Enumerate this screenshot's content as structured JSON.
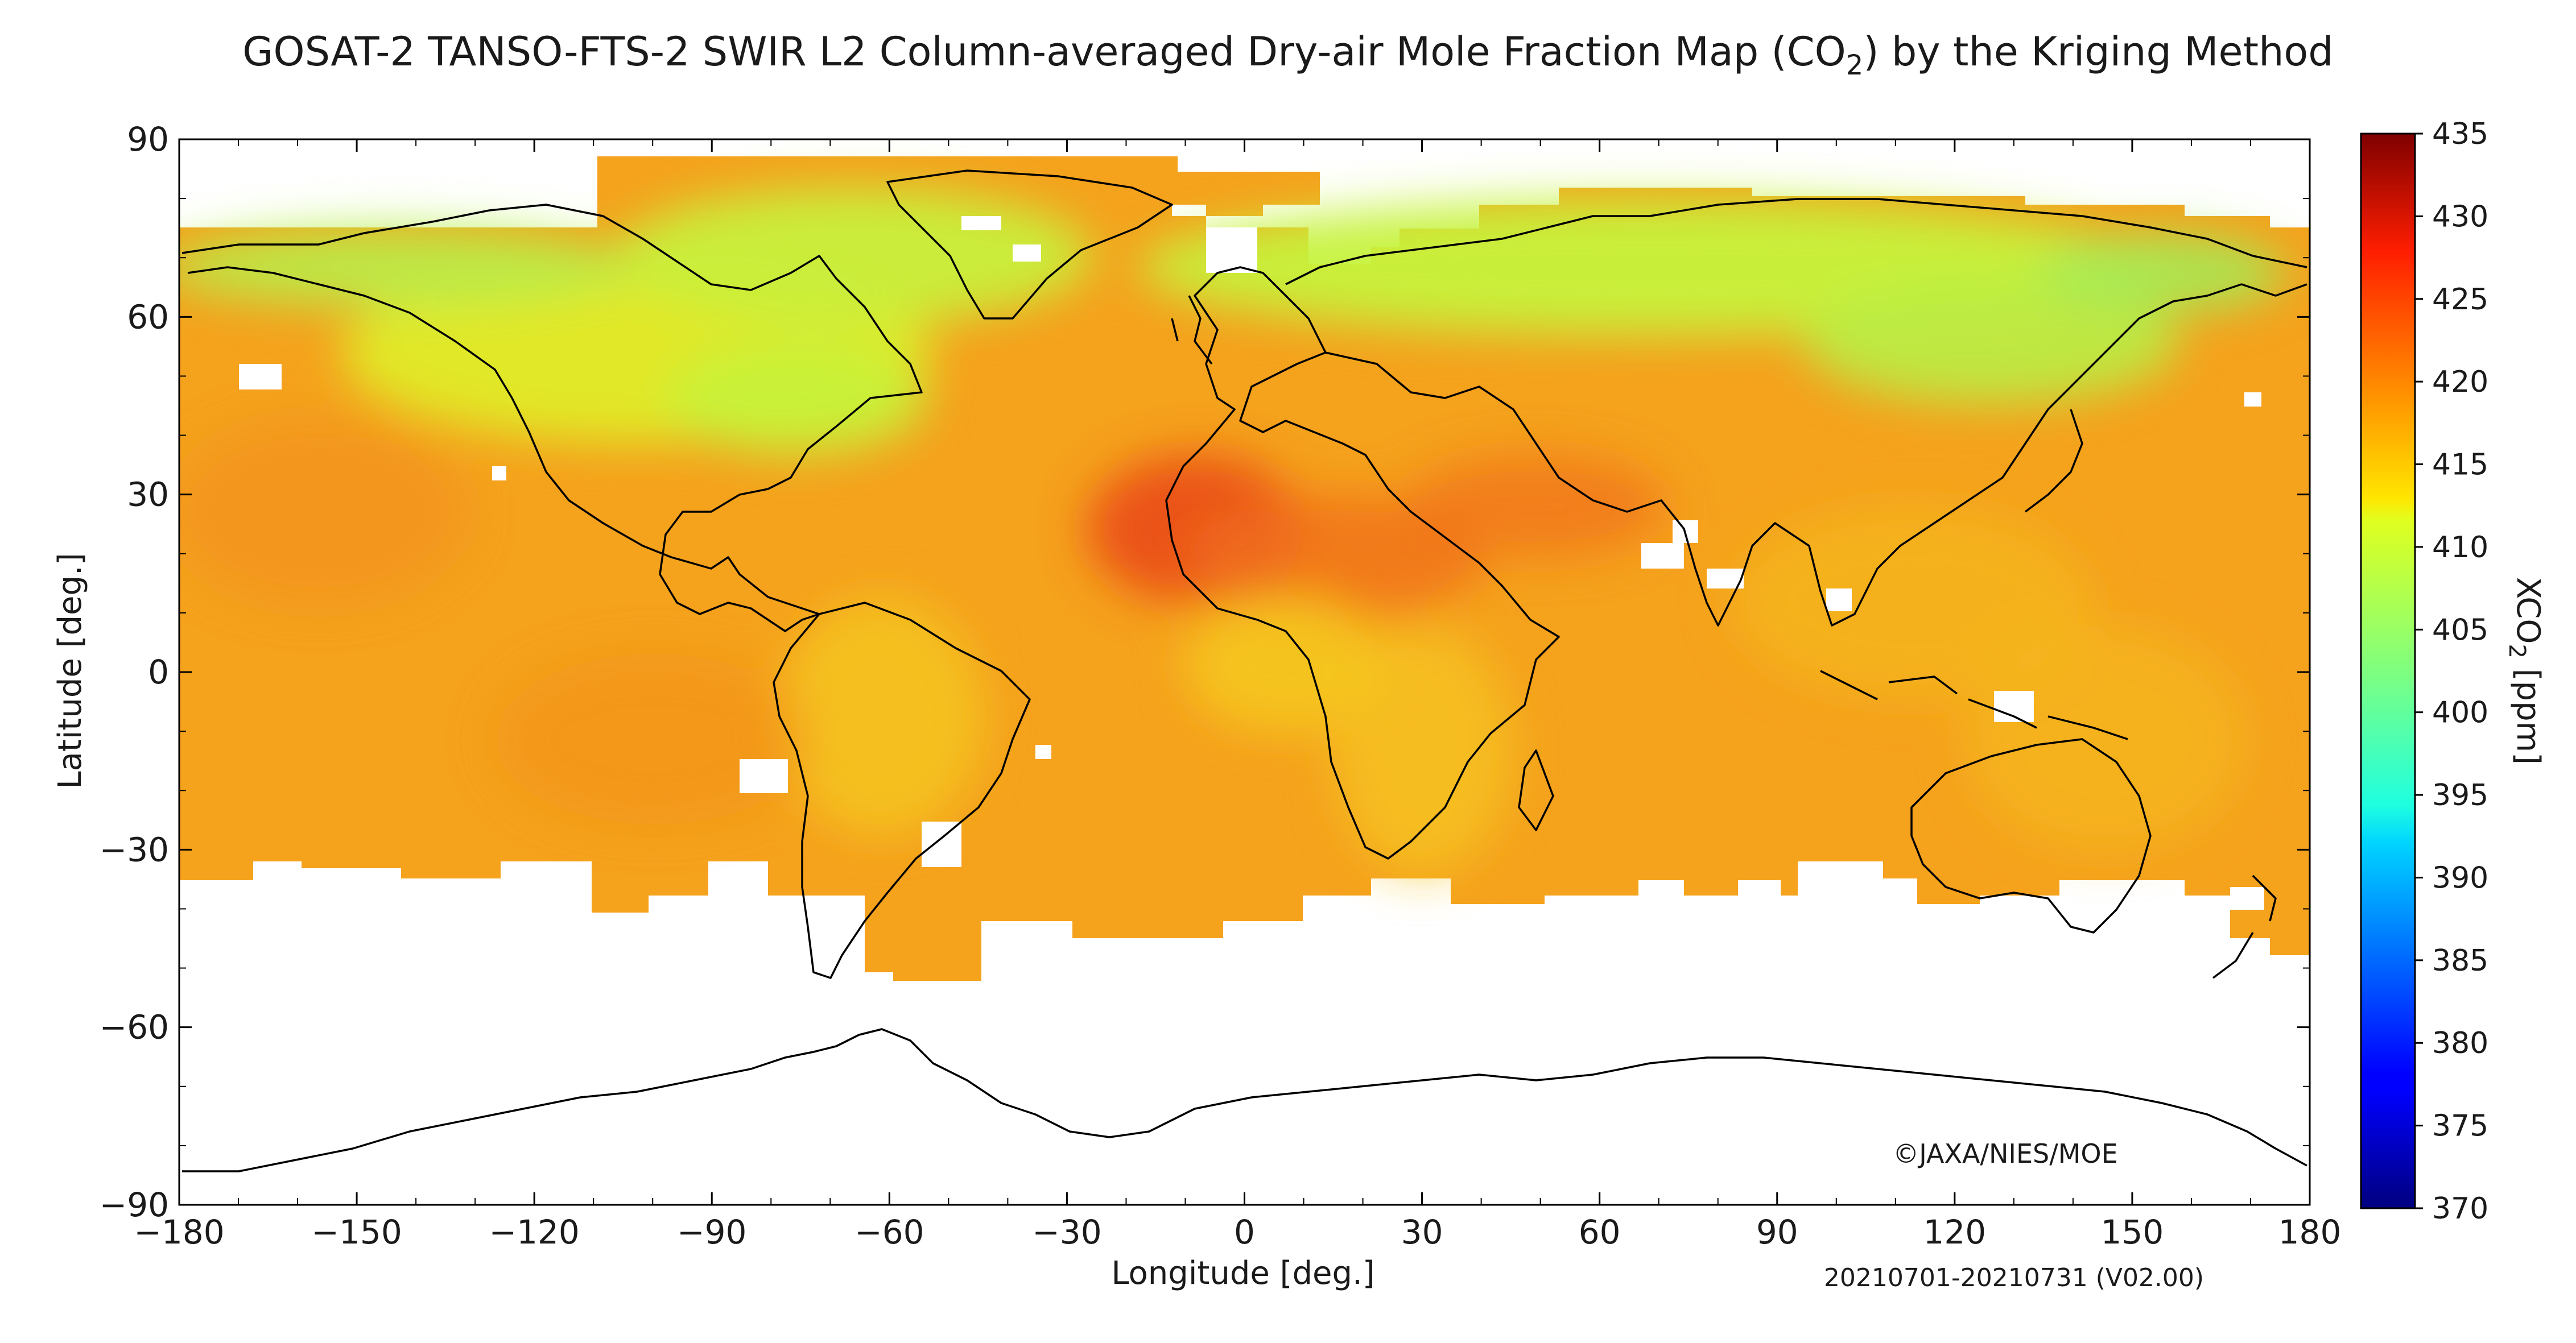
{
  "title": {
    "prefix": "GOSAT-2 TANSO-FTS-2 SWIR L2 Column-averaged Dry-air Mole Fraction Map (CO",
    "subscript": "2",
    "suffix": ") by the Kriging Method"
  },
  "map": {
    "copyright": "©JAXA/NIES/MOE",
    "period": "20210701-20210731 (V02.00)",
    "xlabel": "Longitude [deg.]",
    "ylabel": "Latitude [deg.]",
    "x_ticks": [
      "−180",
      "−150",
      "−120",
      "−90",
      "−60",
      "−30",
      "0",
      "30",
      "60",
      "90",
      "120",
      "150",
      "180"
    ],
    "y_ticks": [
      "90",
      "60",
      "30",
      "0",
      "−30",
      "−60",
      "−90"
    ],
    "xlim": [
      -180,
      180
    ],
    "ylim": [
      -90,
      90
    ]
  },
  "colorbar": {
    "label_prefix": "XCO",
    "label_sub": "2",
    "label_suffix": " [ppm]",
    "ticks": [
      "435",
      "430",
      "425",
      "420",
      "415",
      "410",
      "405",
      "400",
      "395",
      "390",
      "385",
      "380",
      "375",
      "370"
    ],
    "range": [
      370,
      435
    ],
    "colormap": "jet"
  },
  "colors": {
    "ocean_baseline": "#f5a21d",
    "high": "#e4391a",
    "low": "#aef040",
    "no_data": "#ffffff",
    "coastline": "#000000"
  }
}
